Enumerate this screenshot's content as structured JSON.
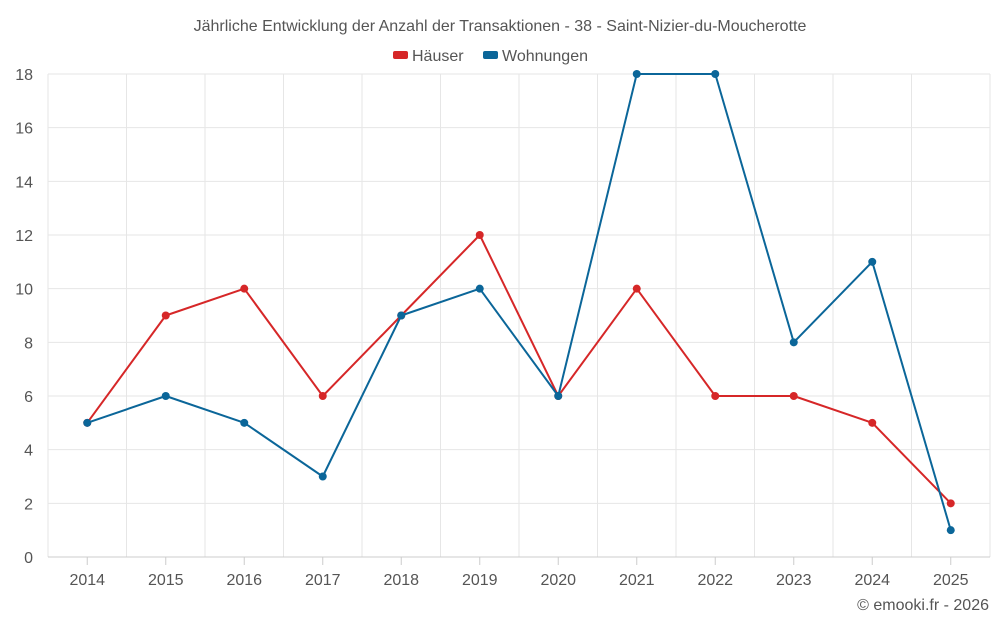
{
  "chart_data": {
    "type": "line",
    "title": "Jährliche Entwicklung der Anzahl der Transaktionen - 38 - Saint-Nizier-du-Moucherotte",
    "categories": [
      "2014",
      "2015",
      "2016",
      "2017",
      "2018",
      "2019",
      "2020",
      "2021",
      "2022",
      "2023",
      "2024",
      "2025"
    ],
    "series": [
      {
        "name": "Häuser",
        "color": "#d62728",
        "values": [
          5,
          9,
          10,
          6,
          9,
          12,
          6,
          10,
          6,
          6,
          5,
          2
        ]
      },
      {
        "name": "Wohnungen",
        "color": "#0b6699",
        "values": [
          5,
          6,
          5,
          3,
          9,
          10,
          6,
          18,
          18,
          8,
          11,
          1
        ]
      }
    ],
    "ylim": [
      0,
      18
    ],
    "yticks": [
      0,
      2,
      4,
      6,
      8,
      10,
      12,
      14,
      16,
      18
    ],
    "grid": true,
    "legend_position": "top-center",
    "xlabel": "",
    "ylabel": ""
  },
  "credit": "© emooki.fr - 2026"
}
